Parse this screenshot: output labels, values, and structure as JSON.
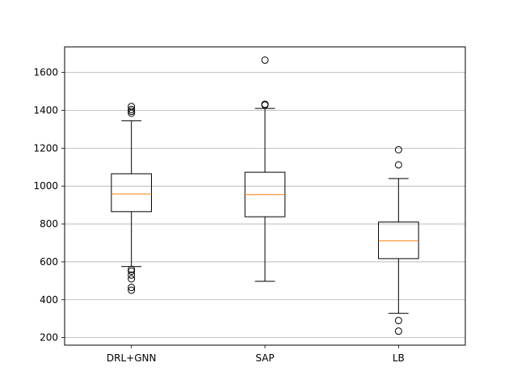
{
  "chart_data": {
    "type": "box",
    "title": "",
    "xlabel": "",
    "ylabel": "",
    "categories": [
      "DRL+GNN",
      "SAP",
      "LB"
    ],
    "ylim": [
      160,
      1735
    ],
    "yticks": [
      200,
      400,
      600,
      800,
      1000,
      1200,
      1400,
      1600
    ],
    "ytick_labels": [
      "200",
      "400",
      "600",
      "800",
      "1000",
      "1200",
      "1400",
      "1600"
    ],
    "grid": "y",
    "series": [
      {
        "category": "DRL+GNN",
        "whisker_low": 575,
        "q1": 865,
        "median": 958,
        "q3": 1065,
        "whisker_high": 1345,
        "outliers": [
          1420,
          1405,
          1395,
          1385,
          560,
          550,
          530,
          510,
          465,
          450
        ]
      },
      {
        "category": "SAP",
        "whisker_low": 497,
        "q1": 838,
        "median": 955,
        "q3": 1073,
        "whisker_high": 1410,
        "outliers": [
          1665,
          1432,
          1428
        ]
      },
      {
        "category": "LB",
        "whisker_low": 328,
        "q1": 617,
        "median": 711,
        "q3": 810,
        "whisker_high": 1040,
        "outliers": [
          1192,
          1112,
          290,
          234
        ]
      }
    ],
    "colors": {
      "box": "#000000",
      "median": "#ff7f0e",
      "grid": "#b0b0b0",
      "outlier_edge": "#000000"
    }
  }
}
